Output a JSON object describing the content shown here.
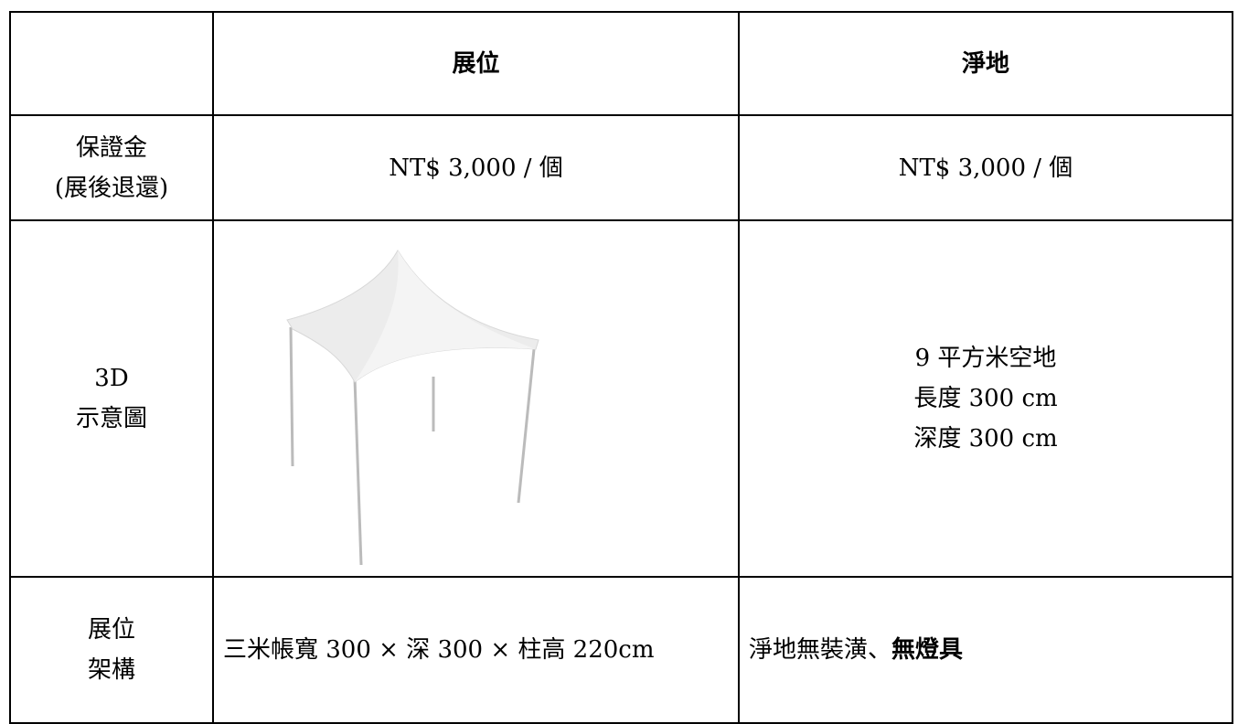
{
  "table": {
    "header": [
      "展位",
      "淨地"
    ],
    "rows": [
      {
        "label": [
          "保證金",
          "(展後退還)"
        ],
        "booth": [
          "NT$ 3,000 / 個"
        ],
        "space": [
          "NT$ 3,000 / 個"
        ]
      },
      {
        "label": [
          "3D",
          "示意圖"
        ],
        "space": [
          "9 平方米空地",
          "長度 300 cm",
          "深度 300 cm"
        ]
      },
      {
        "label": [
          "展位",
          "架構"
        ],
        "booth": [
          "三米帳寬 300 × 深 300 × 柱高 220cm"
        ],
        "space_normal": "淨地無裝潢、",
        "space_bold": "無燈具"
      }
    ]
  }
}
